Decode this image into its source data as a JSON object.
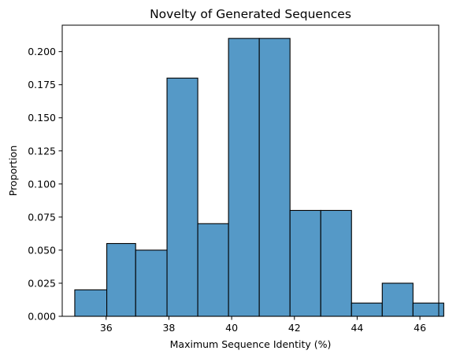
{
  "chart_data": {
    "type": "histogram",
    "title": "Novelty of Generated Sequences",
    "xlabel": "Maximum Sequence Identity (%)",
    "ylabel": "Proportion",
    "bar_color": "#5599c7",
    "bins": [
      {
        "start": 35.0,
        "end": 36.02,
        "value": 0.02
      },
      {
        "start": 36.02,
        "end": 36.94,
        "value": 0.055
      },
      {
        "start": 36.94,
        "end": 37.94,
        "value": 0.05
      },
      {
        "start": 37.94,
        "end": 38.92,
        "value": 0.18
      },
      {
        "start": 38.92,
        "end": 39.9,
        "value": 0.07
      },
      {
        "start": 39.9,
        "end": 40.88,
        "value": 0.21
      },
      {
        "start": 40.88,
        "end": 41.86,
        "value": 0.21
      },
      {
        "start": 41.86,
        "end": 42.84,
        "value": 0.08
      },
      {
        "start": 42.84,
        "end": 43.82,
        "value": 0.08
      },
      {
        "start": 43.82,
        "end": 44.8,
        "value": 0.01
      },
      {
        "start": 44.8,
        "end": 45.78,
        "value": 0.025
      },
      {
        "start": 45.78,
        "end": 46.76,
        "value": 0.01
      }
    ],
    "xlim": [
      34.6,
      46.6
    ],
    "ylim": [
      0,
      0.22
    ],
    "xticks": [
      36,
      38,
      40,
      42,
      44,
      46
    ],
    "xtick_labels": [
      "36",
      "38",
      "40",
      "42",
      "44",
      "46"
    ],
    "yticks": [
      0,
      0.025,
      0.05,
      0.075,
      0.1,
      0.125,
      0.15,
      0.175,
      0.2
    ],
    "ytick_labels": [
      "0.000",
      "0.025",
      "0.050",
      "0.075",
      "0.100",
      "0.125",
      "0.150",
      "0.175",
      "0.200"
    ],
    "grid": false
  }
}
